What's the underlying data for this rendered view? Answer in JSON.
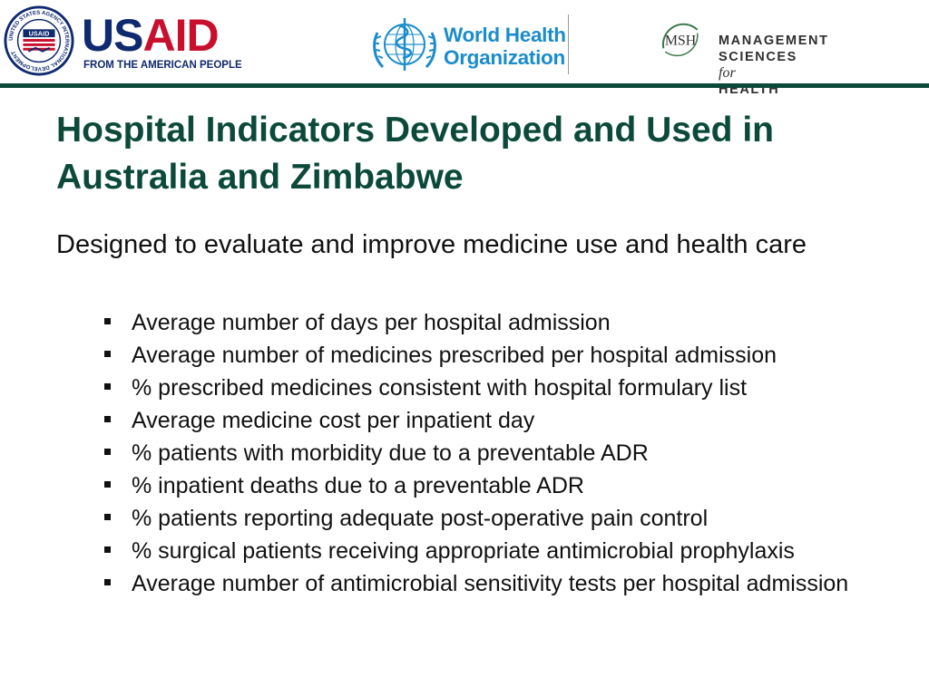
{
  "header": {
    "usaid": {
      "word_part1": "US",
      "word_part2": "AID",
      "tagline": "FROM THE AMERICAN PEOPLE",
      "seal_caption": "USAID",
      "seal_ring_text": "UNITED STATES AGENCY INTERNATIONAL DEVELOPMENT",
      "colors": {
        "navy": "#0f2a6e",
        "red": "#c8102e"
      }
    },
    "who": {
      "line1": "World Health",
      "line2": "Organization",
      "color": "#1a8ccc"
    },
    "msh": {
      "monogram": "MSH",
      "line1": "Management",
      "line2_part1": "Sciences",
      "line2_for": "for",
      "line2_part3": "Health"
    },
    "rule_color": "#0b4a3a"
  },
  "slide": {
    "title": "Hospital Indicators Developed and Used in Australia and Zimbabwe",
    "subtitle": "Designed to evaluate and improve medicine use and health care",
    "bullets": [
      "Average number of days per hospital admission",
      "Average number of medicines prescribed per hospital admission",
      "% prescribed medicines consistent with hospital formulary list",
      "Average medicine cost per inpatient day",
      "% patients with morbidity due to a preventable ADR",
      "% inpatient deaths due to a preventable ADR",
      "% patients reporting adequate post-operative pain control",
      "% surgical patients receiving appropriate antimicrobial prophylaxis",
      "Average number of antimicrobial sensitivity tests per hospital admission"
    ],
    "title_color": "#0b4a3a"
  }
}
